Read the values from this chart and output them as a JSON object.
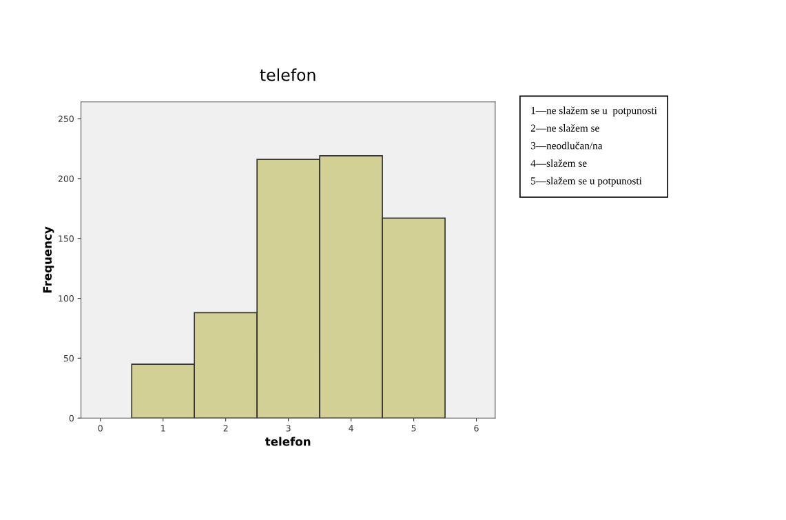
{
  "chart_data": {
    "type": "histogram",
    "title": "telefon",
    "xlabel": "telefon",
    "ylabel": "Frequency",
    "bins": [
      0.5,
      1.5,
      2.5,
      3.5,
      4.5,
      5.5
    ],
    "values": [
      45,
      88,
      216,
      219,
      167
    ],
    "color": "#d3d095",
    "xlim": [
      -0.31,
      6.3
    ],
    "xticks": [
      0,
      1,
      2,
      3,
      4,
      5,
      6
    ],
    "ylim": [
      0,
      264
    ],
    "yticks": [
      0,
      50,
      100,
      150,
      200,
      250
    ],
    "grid": false,
    "annotations": [
      "1—ne slažem se u  potpunosti",
      "2—ne slažem se",
      "3—neodlučan/na",
      "4—slažem se",
      "5—slažem se u potpunosti"
    ]
  }
}
